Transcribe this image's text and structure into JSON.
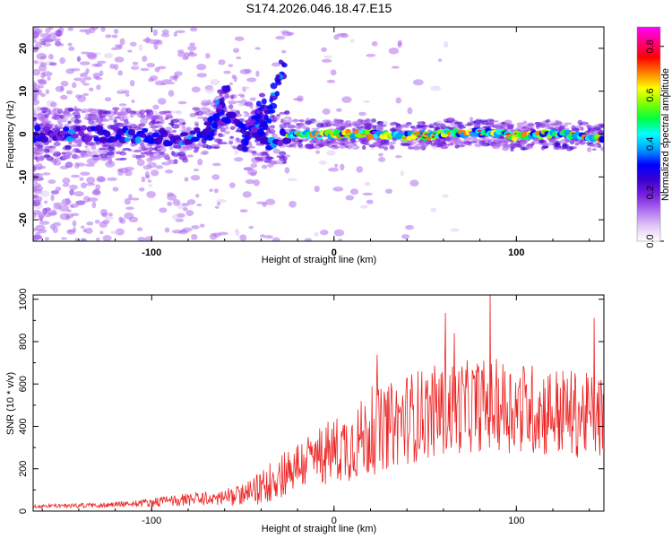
{
  "title": "S174.2026.046.18.47.E15",
  "chart_data": [
    {
      "type": "heatmap",
      "name": "spectrogram",
      "xlabel": "Height of straight line (km)",
      "ylabel": "Frequency (Hz)",
      "xlim": [
        -165,
        148
      ],
      "ylim": [
        -25,
        25
      ],
      "xticks": [
        -100,
        0,
        100
      ],
      "xtick_labels": [
        "-100",
        "0",
        "100"
      ],
      "yticks": [
        -20,
        -10,
        0,
        10,
        20
      ],
      "ytick_labels": [
        "-20",
        "-10",
        "0",
        "10",
        "20"
      ],
      "colorbar": {
        "label": "Normalized spectral amplitude",
        "range": [
          0.0,
          0.88
        ],
        "ticks": [
          0.0,
          0.2,
          0.4,
          0.6,
          0.8
        ],
        "tick_labels": [
          "0.0",
          "0.2",
          "0.4",
          "0.6",
          "0.8"
        ],
        "colormap": [
          "#ffffff",
          "#e0c8f8",
          "#b070f0",
          "#7a20e0",
          "#3a00d0",
          "#0000ff",
          "#00a0ff",
          "#00ffff",
          "#00ff40",
          "#80ff00",
          "#ffff00",
          "#ff8000",
          "#ff0000",
          "#ff0080",
          "#ff00ff"
        ]
      },
      "ridge": {
        "description_points_x": [
          -165,
          -120,
          -80,
          -60,
          -45,
          -35,
          -25,
          -10,
          0,
          20,
          40,
          60,
          80,
          100,
          120,
          140,
          148
        ],
        "frequency_hz": [
          0,
          0,
          -1,
          4,
          1,
          -2,
          0,
          0,
          0,
          0,
          -0.5,
          0,
          0.5,
          -0.5,
          0,
          -0.5,
          -1
        ]
      }
    },
    {
      "type": "line",
      "name": "snr",
      "xlabel": "Height of straight line (km)",
      "ylabel": "SNR (10 * v/v)",
      "xlim": [
        -165,
        148
      ],
      "ylim": [
        0,
        1020
      ],
      "xticks": [
        -100,
        0,
        100
      ],
      "xtick_labels": [
        "-100",
        "0",
        "100"
      ],
      "yticks": [
        0,
        200,
        400,
        600,
        800,
        1000
      ],
      "ytick_labels": [
        "0",
        "200",
        "400",
        "600",
        "800",
        "1000"
      ],
      "series": [
        {
          "name": "SNR",
          "color": "#ee2222",
          "x": [
            -165,
            -150,
            -130,
            -110,
            -95,
            -80,
            -65,
            -55,
            -45,
            -40,
            -35,
            -30,
            -25,
            -20,
            -15,
            -10,
            -5,
            0,
            5,
            10,
            15,
            20,
            25,
            30,
            35,
            40,
            50,
            60,
            70,
            80,
            90,
            100,
            110,
            120,
            130,
            140,
            148
          ],
          "mean": [
            22,
            25,
            28,
            35,
            45,
            55,
            60,
            70,
            90,
            110,
            140,
            170,
            195,
            215,
            235,
            255,
            270,
            285,
            300,
            320,
            340,
            360,
            380,
            400,
            420,
            440,
            460,
            480,
            490,
            500,
            500,
            490,
            480,
            470,
            460,
            450,
            440
          ],
          "spread": [
            8,
            10,
            12,
            15,
            25,
            30,
            35,
            45,
            60,
            80,
            100,
            110,
            120,
            120,
            130,
            140,
            150,
            160,
            170,
            180,
            190,
            200,
            200,
            200,
            210,
            220,
            220,
            220,
            220,
            220,
            220,
            220,
            220,
            220,
            210,
            200,
            200
          ]
        }
      ]
    }
  ]
}
